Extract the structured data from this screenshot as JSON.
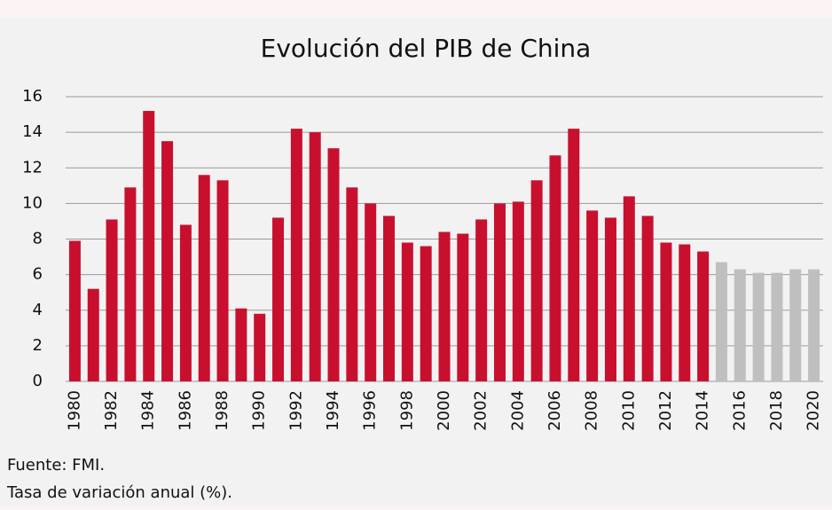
{
  "chart_data": {
    "type": "bar",
    "title": "Evolución del PIB de China",
    "categories": [
      "1980",
      null,
      "1982",
      null,
      "1984",
      null,
      "1986",
      null,
      "1988",
      null,
      "1990",
      null,
      "1992",
      null,
      "1994",
      null,
      "1996",
      null,
      "1998",
      null,
      "2000",
      null,
      "2002",
      null,
      "2004",
      null,
      "2006",
      null,
      "2008",
      null,
      "2010",
      null,
      "2012",
      null,
      "2014",
      null,
      "2016",
      null,
      "2018",
      null,
      "2020"
    ],
    "values": [
      7.9,
      5.2,
      9.1,
      10.9,
      15.2,
      13.5,
      8.8,
      11.6,
      11.3,
      4.1,
      3.8,
      9.2,
      14.2,
      14.0,
      13.1,
      10.9,
      10.0,
      9.3,
      7.8,
      7.6,
      8.4,
      8.3,
      9.1,
      10.0,
      10.1,
      11.3,
      12.7,
      14.2,
      9.6,
      9.2,
      10.4,
      9.3,
      7.8,
      7.7,
      7.3,
      6.7,
      6.3,
      6.1,
      6.1,
      6.3,
      6.3
    ],
    "colors": [
      "#c8102e",
      "#c8102e",
      "#c8102e",
      "#c8102e",
      "#c8102e",
      "#c8102e",
      "#c8102e",
      "#c8102e",
      "#c8102e",
      "#c8102e",
      "#c8102e",
      "#c8102e",
      "#c8102e",
      "#c8102e",
      "#c8102e",
      "#c8102e",
      "#c8102e",
      "#c8102e",
      "#c8102e",
      "#c8102e",
      "#c8102e",
      "#c8102e",
      "#c8102e",
      "#c8102e",
      "#c8102e",
      "#c8102e",
      "#c8102e",
      "#c8102e",
      "#c8102e",
      "#c8102e",
      "#c8102e",
      "#c8102e",
      "#c8102e",
      "#c8102e",
      "#c8102e",
      "#bfbfbf",
      "#bfbfbf",
      "#bfbfbf",
      "#bfbfbf",
      "#bfbfbf",
      "#bfbfbf"
    ],
    "ylim": [
      0,
      16
    ],
    "yticks": [
      0,
      2,
      4,
      6,
      8,
      10,
      12,
      14,
      16
    ],
    "grid": true,
    "notes": [
      "Fuente: FMI.",
      "Tasa de variación anual (%)."
    ]
  }
}
